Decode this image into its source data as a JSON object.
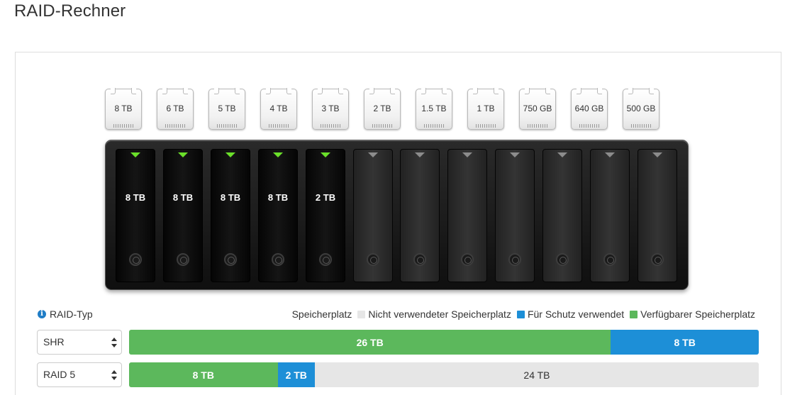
{
  "title": "RAID-Rechner",
  "drives": [
    {
      "label": "8 TB"
    },
    {
      "label": "6 TB"
    },
    {
      "label": "5 TB"
    },
    {
      "label": "4 TB"
    },
    {
      "label": "3 TB"
    },
    {
      "label": "2 TB"
    },
    {
      "label": "1.5 TB"
    },
    {
      "label": "1 TB"
    },
    {
      "label": "750 GB"
    },
    {
      "label": "640 GB"
    },
    {
      "label": "500 GB"
    }
  ],
  "nas": {
    "bays": [
      {
        "label": "8 TB",
        "filled": true
      },
      {
        "label": "8 TB",
        "filled": true
      },
      {
        "label": "8 TB",
        "filled": true
      },
      {
        "label": "8 TB",
        "filled": true
      },
      {
        "label": "2 TB",
        "filled": true
      },
      {
        "label": "",
        "filled": false
      },
      {
        "label": "",
        "filled": false
      },
      {
        "label": "",
        "filled": false
      },
      {
        "label": "",
        "filled": false
      },
      {
        "label": "",
        "filled": false
      },
      {
        "label": "",
        "filled": false
      },
      {
        "label": "",
        "filled": false
      }
    ]
  },
  "raid_type_label": "RAID-Typ",
  "legend": {
    "title": "Speicherplatz",
    "unused": "Nicht verwendeter Speicherplatz",
    "protection": "Für Schutz verwendet",
    "available": "Verfügbarer Speicherplatz"
  },
  "colors": {
    "available": "#5cb85c",
    "protection": "#1d8fd7",
    "unused": "#e6e6e6",
    "led_active": "#6be02a",
    "info": "#1f7dc6"
  },
  "rows": [
    {
      "raid": "SHR",
      "segments": [
        {
          "type": "available",
          "label": "26 TB",
          "fraction": 0.765
        },
        {
          "type": "protection",
          "label": "8 TB",
          "fraction": 0.235
        }
      ]
    },
    {
      "raid": "RAID 5",
      "segments": [
        {
          "type": "available",
          "label": "8 TB",
          "fraction": 0.236
        },
        {
          "type": "protection",
          "label": "2 TB",
          "fraction": 0.059
        },
        {
          "type": "unused",
          "label": "24 TB",
          "fraction": 0.705
        }
      ]
    }
  ]
}
